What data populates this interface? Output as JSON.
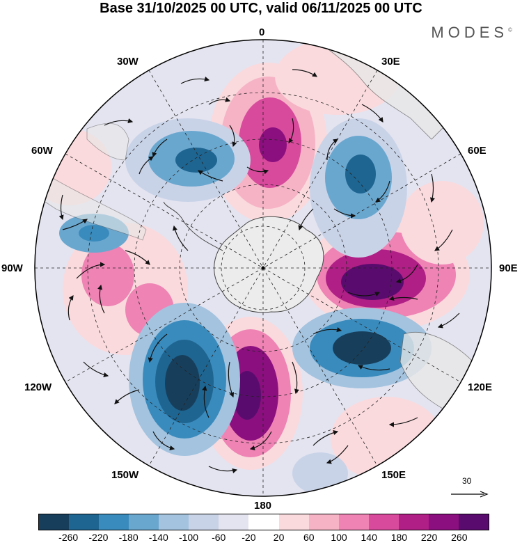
{
  "title": "Base 31/10/2025 00 UTC, valid 06/11/2025 00 UTC",
  "brand": "MODES",
  "brand_mark": "©",
  "longitude_labels": {
    "lon_0": "0",
    "lon_30e": "30E",
    "lon_60e": "60E",
    "lon_90e": "90E",
    "lon_120e": "120E",
    "lon_150e": "150E",
    "lon_180": "180",
    "lon_150w": "150W",
    "lon_120w": "120W",
    "lon_90w": "90W",
    "lon_60w": "60W",
    "lon_30w": "30W"
  },
  "reference_vector": {
    "label": "30"
  },
  "colorbar": {
    "colors": [
      "#173f5c",
      "#1f6591",
      "#3a8bbd",
      "#6aa7cf",
      "#a3c3df",
      "#c9d3e8",
      "#e4e4f0",
      "#ffffff",
      "#fadadd",
      "#f6b3c6",
      "#ee83b4",
      "#d84a9c",
      "#b01f86",
      "#8c0f7f",
      "#5a0c6e"
    ],
    "tick_labels": [
      "-260",
      "-220",
      "-180",
      "-140",
      "-100",
      "-60",
      "-20",
      "20",
      "60",
      "100",
      "140",
      "180",
      "220",
      "260"
    ]
  }
}
